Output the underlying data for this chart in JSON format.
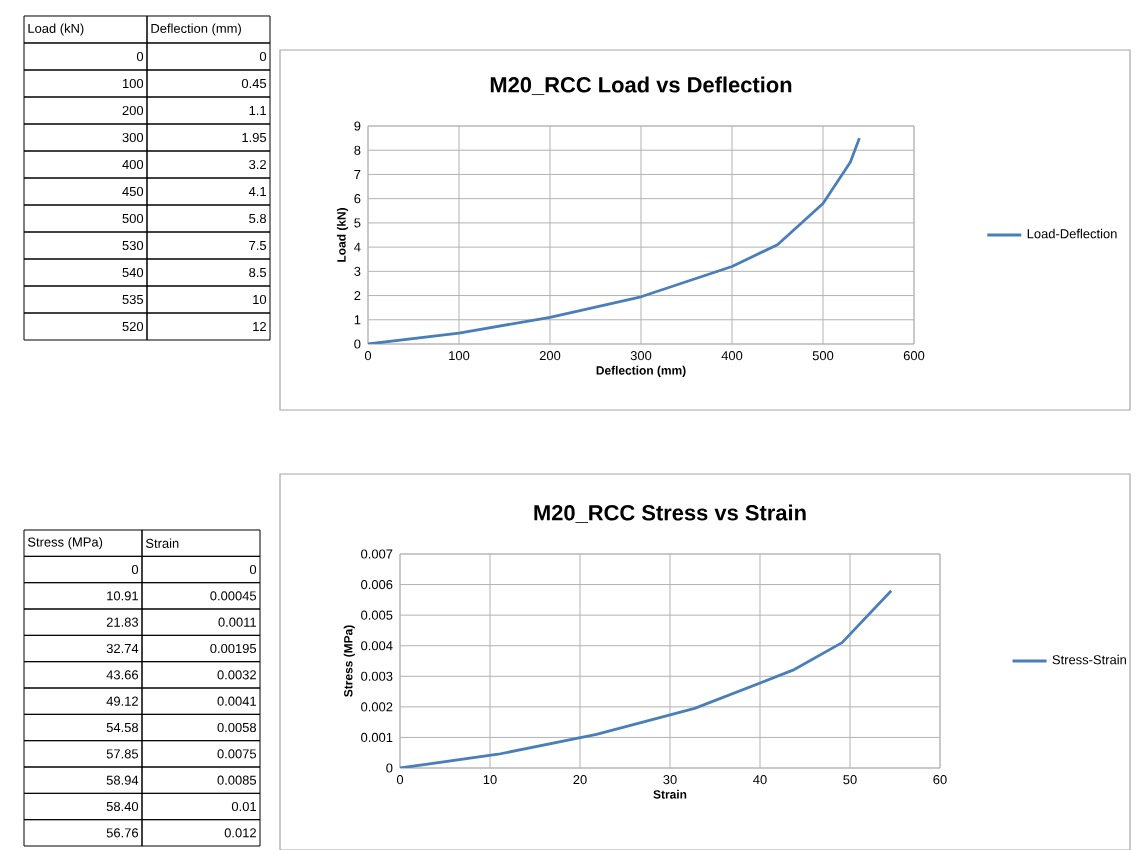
{
  "chart_data": [
    {
      "type": "other",
      "categories": [
        "Load (kN)",
        "Deflection (mm)"
      ],
      "cell_labels": [
        [
          "0",
          "0"
        ],
        [
          "100",
          "0.45"
        ],
        [
          "200",
          "1.1"
        ],
        [
          "300",
          "1.95"
        ],
        [
          "400",
          "3.2"
        ],
        [
          "450",
          "4.1"
        ],
        [
          "500",
          "5.8"
        ],
        [
          "530",
          "7.5"
        ],
        [
          "540",
          "8.5"
        ],
        [
          "535",
          "10"
        ],
        [
          "520",
          "12"
        ]
      ]
    },
    {
      "type": "line",
      "title": "M20_RCC Load vs Deflection",
      "xlabel": "Deflection (mm)",
      "ylabel": "Load (kN)",
      "x": [
        0,
        100,
        200,
        300,
        400,
        450,
        500,
        530,
        540
      ],
      "series": [
        {
          "name": "Load-Deflection",
          "color": "#4a7ebb",
          "values": [
            0,
            0.45,
            1.1,
            1.95,
            3.2,
            4.1,
            5.8,
            7.5,
            8.5
          ]
        }
      ],
      "xlim": [
        0,
        600
      ],
      "xticks": [
        0,
        100,
        200,
        300,
        400,
        500,
        600
      ],
      "ylim": [
        0,
        9
      ],
      "yticks": [
        0,
        1,
        2,
        3,
        4,
        5,
        6,
        7,
        8,
        9
      ],
      "grid": true,
      "legend": "right",
      "marker": "none",
      "line_style": "solid"
    },
    {
      "type": "other",
      "categories": [
        "Stress (MPa)",
        "Strain"
      ],
      "cell_labels": [
        [
          "0",
          "0"
        ],
        [
          "10.91",
          "0.00045"
        ],
        [
          "21.83",
          "0.0011"
        ],
        [
          "32.74",
          "0.00195"
        ],
        [
          "43.66",
          "0.0032"
        ],
        [
          "49.12",
          "0.0041"
        ],
        [
          "54.58",
          "0.0058"
        ],
        [
          "57.85",
          "0.0075"
        ],
        [
          "58.94",
          "0.0085"
        ],
        [
          "58.40",
          "0.01"
        ],
        [
          "56.76",
          "0.012"
        ]
      ]
    },
    {
      "type": "line",
      "title": "M20_RCC Stress vs Strain",
      "xlabel": "Strain",
      "ylabel": "Stress (MPa)",
      "x": [
        0,
        10.91,
        21.83,
        32.74,
        43.66,
        49.12,
        54.58
      ],
      "series": [
        {
          "name": "Stress-Strain",
          "color": "#4a7ebb",
          "values": [
            0,
            0.00045,
            0.0011,
            0.00195,
            0.0032,
            0.0041,
            0.0058
          ]
        }
      ],
      "xlim": [
        0,
        60
      ],
      "xticks": [
        0,
        10,
        20,
        30,
        40,
        50,
        60
      ],
      "ylim": [
        0,
        0.007
      ],
      "yticks": [
        0,
        0.001,
        0.002,
        0.003,
        0.004,
        0.005,
        0.006,
        0.007
      ],
      "grid": true,
      "legend": "right",
      "marker": "none",
      "line_style": "solid"
    }
  ]
}
